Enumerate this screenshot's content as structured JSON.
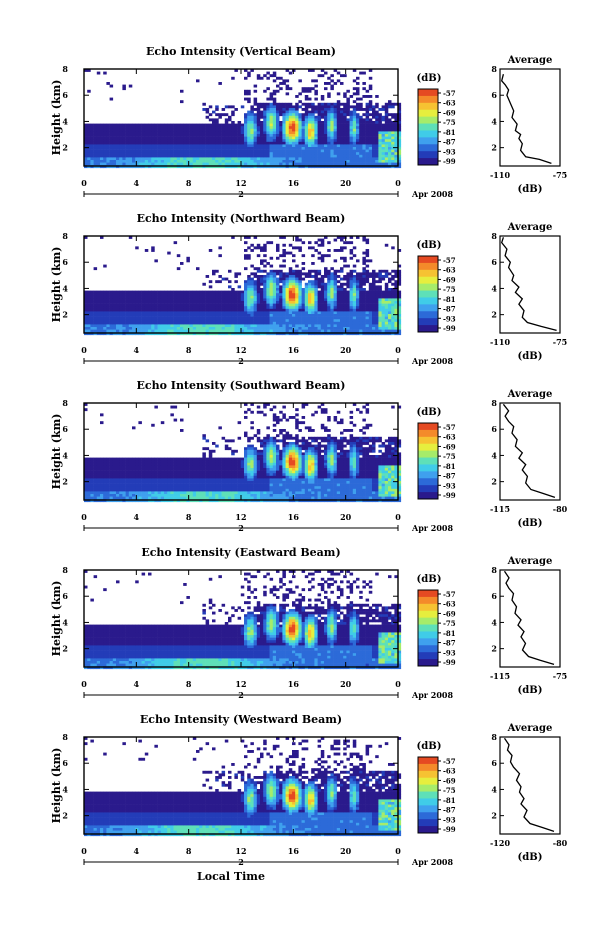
{
  "chart_data": [
    {
      "type": "heatmap",
      "title": "Echo Intensity (Vertical Beam)",
      "ylabel": "Height (km)",
      "x_ticks": [
        "0",
        "4",
        "8",
        "12",
        "16",
        "20",
        "0"
      ],
      "y_ticks": [
        "2",
        "4",
        "6",
        "8"
      ],
      "xlim": [
        0,
        24
      ],
      "ylim": [
        0.6,
        8
      ],
      "date_marker": "2",
      "date_label": "Apr 2008",
      "colorbar": {
        "unit": "(dB)",
        "ticks": [
          "-57",
          "-63",
          "-69",
          "-75",
          "-81",
          "-87",
          "-93",
          "-99"
        ]
      },
      "profile": {
        "title": "Average",
        "xlabel": "(dB)",
        "x_ticks": [
          "-110",
          "-75"
        ],
        "y_ticks": [
          "2",
          "4",
          "6",
          "8"
        ],
        "xlim": [
          -110,
          -75
        ],
        "values": [
          [
            -80,
            0.8
          ],
          [
            -87,
            1.1
          ],
          [
            -95,
            1.3
          ],
          [
            -98,
            1.8
          ],
          [
            -97,
            2.3
          ],
          [
            -99,
            2.7
          ],
          [
            -98,
            3.0
          ],
          [
            -101,
            3.3
          ],
          [
            -100,
            3.8
          ],
          [
            -103,
            4.3
          ],
          [
            -102,
            4.8
          ],
          [
            -104,
            5.4
          ],
          [
            -106,
            6.0
          ],
          [
            -105,
            6.4
          ],
          [
            -107,
            6.8
          ],
          [
            -109,
            7.1
          ],
          [
            -108,
            7.6
          ]
        ]
      }
    },
    {
      "type": "heatmap",
      "title": "Echo Intensity (Northward Beam)",
      "ylabel": "Height (km)",
      "x_ticks": [
        "0",
        "4",
        "8",
        "12",
        "16",
        "20",
        "0"
      ],
      "y_ticks": [
        "2",
        "4",
        "6",
        "8"
      ],
      "xlim": [
        0,
        24
      ],
      "ylim": [
        0.6,
        8
      ],
      "date_marker": "2",
      "date_label": "Apr 2008",
      "colorbar": {
        "unit": "(dB)",
        "ticks": [
          "-57",
          "-63",
          "-69",
          "-75",
          "-81",
          "-87",
          "-93",
          "-99"
        ]
      },
      "profile": {
        "title": "Average",
        "xlabel": "(dB)",
        "x_ticks": [
          "-110",
          "-75"
        ],
        "y_ticks": [
          "2",
          "4",
          "6",
          "8"
        ],
        "xlim": [
          -110,
          -75
        ],
        "values": [
          [
            -77,
            0.8
          ],
          [
            -86,
            1.1
          ],
          [
            -94,
            1.4
          ],
          [
            -97,
            1.8
          ],
          [
            -96,
            2.3
          ],
          [
            -99,
            2.8
          ],
          [
            -97,
            3.2
          ],
          [
            -101,
            3.7
          ],
          [
            -99,
            4.1
          ],
          [
            -103,
            4.6
          ],
          [
            -102,
            5.0
          ],
          [
            -105,
            5.6
          ],
          [
            -104,
            6.0
          ],
          [
            -107,
            6.5
          ],
          [
            -106,
            7.0
          ],
          [
            -109,
            7.5
          ],
          [
            -108,
            7.9
          ]
        ]
      }
    },
    {
      "type": "heatmap",
      "title": "Echo Intensity (Southward Beam)",
      "ylabel": "Height (km)",
      "x_ticks": [
        "0",
        "4",
        "8",
        "12",
        "16",
        "20",
        "0"
      ],
      "y_ticks": [
        "2",
        "4",
        "6",
        "8"
      ],
      "xlim": [
        0,
        24
      ],
      "ylim": [
        0.6,
        8
      ],
      "date_marker": "2",
      "date_label": "Apr 2008",
      "colorbar": {
        "unit": "(dB)",
        "ticks": [
          "-57",
          "-63",
          "-69",
          "-75",
          "-81",
          "-87",
          "-93",
          "-99"
        ]
      },
      "profile": {
        "title": "Average",
        "xlabel": "(dB)",
        "x_ticks": [
          "-115",
          "-80"
        ],
        "y_ticks": [
          "2",
          "4",
          "6",
          "8"
        ],
        "xlim": [
          -115,
          -80
        ],
        "values": [
          [
            -83,
            0.8
          ],
          [
            -90,
            1.1
          ],
          [
            -97,
            1.4
          ],
          [
            -100,
            1.9
          ],
          [
            -99,
            2.4
          ],
          [
            -102,
            2.9
          ],
          [
            -100,
            3.3
          ],
          [
            -104,
            3.8
          ],
          [
            -102,
            4.2
          ],
          [
            -106,
            4.7
          ],
          [
            -105,
            5.2
          ],
          [
            -108,
            5.7
          ],
          [
            -107,
            6.2
          ],
          [
            -110,
            6.6
          ],
          [
            -112,
            7.0
          ],
          [
            -110,
            7.4
          ],
          [
            -113,
            7.9
          ]
        ]
      }
    },
    {
      "type": "heatmap",
      "title": "Echo Intensity (Eastward Beam)",
      "ylabel": "Height (km)",
      "x_ticks": [
        "0",
        "4",
        "8",
        "12",
        "16",
        "20",
        "0"
      ],
      "y_ticks": [
        "2",
        "4",
        "6",
        "8"
      ],
      "xlim": [
        0,
        24
      ],
      "ylim": [
        0.6,
        8
      ],
      "date_marker": "2",
      "date_label": "Apr 2008",
      "colorbar": {
        "unit": "(dB)",
        "ticks": [
          "-57",
          "-63",
          "-69",
          "-75",
          "-81",
          "-87",
          "-93",
          "-99"
        ]
      },
      "profile": {
        "title": "Average",
        "xlabel": "(dB)",
        "x_ticks": [
          "-115",
          "-75"
        ],
        "y_ticks": [
          "2",
          "4",
          "6",
          "8"
        ],
        "xlim": [
          -115,
          -75
        ],
        "values": [
          [
            -79,
            0.8
          ],
          [
            -88,
            1.1
          ],
          [
            -96,
            1.4
          ],
          [
            -100,
            1.9
          ],
          [
            -98,
            2.4
          ],
          [
            -101,
            2.9
          ],
          [
            -99,
            3.3
          ],
          [
            -103,
            3.8
          ],
          [
            -101,
            4.2
          ],
          [
            -105,
            4.7
          ],
          [
            -104,
            5.2
          ],
          [
            -107,
            5.7
          ],
          [
            -106,
            6.2
          ],
          [
            -109,
            6.6
          ],
          [
            -111,
            7.0
          ],
          [
            -109,
            7.4
          ],
          [
            -112,
            7.9
          ]
        ]
      }
    },
    {
      "type": "heatmap",
      "title": "Echo Intensity (Westward Beam)",
      "ylabel": "Height (km)",
      "x_ticks": [
        "0",
        "4",
        "8",
        "12",
        "16",
        "20",
        "0"
      ],
      "y_ticks": [
        "2",
        "4",
        "6",
        "8"
      ],
      "xlim": [
        0,
        24
      ],
      "ylim": [
        0.6,
        8
      ],
      "date_marker": "2",
      "date_label": "Apr 2008",
      "xlabel": "Local Time",
      "colorbar": {
        "unit": "(dB)",
        "ticks": [
          "-57",
          "-63",
          "-69",
          "-75",
          "-81",
          "-87",
          "-93",
          "-99"
        ]
      },
      "profile": {
        "title": "Average",
        "xlabel": "(dB)",
        "x_ticks": [
          "-120",
          "-80"
        ],
        "y_ticks": [
          "2",
          "4",
          "6",
          "8"
        ],
        "xlim": [
          -120,
          -80
        ],
        "values": [
          [
            -84,
            0.8
          ],
          [
            -92,
            1.1
          ],
          [
            -100,
            1.4
          ],
          [
            -104,
            1.9
          ],
          [
            -102,
            2.4
          ],
          [
            -106,
            2.9
          ],
          [
            -104,
            3.3
          ],
          [
            -107,
            3.8
          ],
          [
            -106,
            4.2
          ],
          [
            -109,
            4.7
          ],
          [
            -107,
            5.2
          ],
          [
            -111,
            5.7
          ],
          [
            -113,
            6.1
          ],
          [
            -112,
            6.6
          ],
          [
            -115,
            7.0
          ],
          [
            -114,
            7.4
          ],
          [
            -117,
            7.9
          ]
        ]
      }
    }
  ],
  "colors": {
    "scale": [
      "#2a1a8c",
      "#233cb8",
      "#2c6ad8",
      "#3fa0ee",
      "#40cce8",
      "#5ee0b8",
      "#a6ec6a",
      "#e6ee3e",
      "#f6c232",
      "#f48a2a",
      "#e54a22"
    ]
  }
}
